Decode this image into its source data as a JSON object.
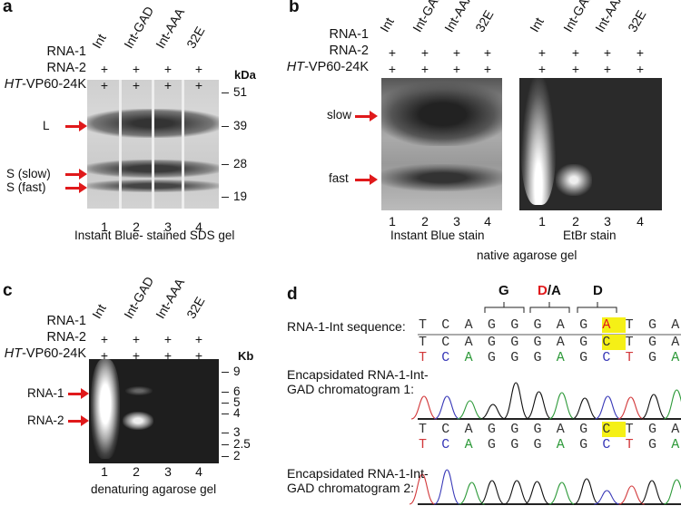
{
  "panel_a": {
    "label": "a",
    "rows": [
      "RNA-1",
      "RNA-2",
      "HT-VP60-24K"
    ],
    "row_italic_prefix": "HT",
    "lanes": [
      "Int",
      "Int-GAD",
      "Int-AAA",
      "32E"
    ],
    "plus": "+",
    "unit": "kDa",
    "ticks": [
      "51",
      "39",
      "28",
      "19"
    ],
    "arrows": [
      "L",
      "S (slow)",
      "S (fast)"
    ],
    "lane_numbers": [
      "1",
      "2",
      "3",
      "4"
    ],
    "caption": "Instant Blue- stained SDS gel"
  },
  "panel_b": {
    "label": "b",
    "rows": [
      "RNA-1",
      "RNA-2",
      "HT-VP60-24K"
    ],
    "lanes": [
      "Int",
      "Int-GAD",
      "Int-AAA",
      "32E"
    ],
    "plus": "+",
    "arrows": [
      "slow",
      "fast"
    ],
    "lane_numbers": [
      "1",
      "2",
      "3",
      "4"
    ],
    "caption_left": "Instant Blue stain",
    "caption_right": "EtBr stain",
    "caption": "native agarose gel"
  },
  "panel_c": {
    "label": "c",
    "rows": [
      "RNA-1",
      "RNA-2",
      "HT-VP60-24K"
    ],
    "lanes": [
      "Int",
      "Int-GAD",
      "Int-AAA",
      "32E"
    ],
    "plus": "+",
    "unit": "Kb",
    "ticks": [
      "9",
      "6",
      "5",
      "4",
      "3",
      "2.5",
      "2"
    ],
    "arrows": [
      "RNA-1",
      "RNA-2"
    ],
    "lane_numbers": [
      "1",
      "2",
      "3",
      "4"
    ],
    "caption": "denaturing agarose gel"
  },
  "panel_d": {
    "label": "d",
    "codons": [
      "G",
      "D",
      "/A",
      "D"
    ],
    "seq_label": "RNA-1-Int sequence:",
    "seq_ref": "TCAGGGAGATGATTGTG",
    "seq_read": "TCAGGGAGCTGATTGTG",
    "chrom1_label_1": "Encapsidated RNA-1-Int-",
    "chrom1_label_2": "GAD chromatogram 1:",
    "chrom2_label_1": "Encapsidated RNA-1-Int-",
    "chrom2_label_2": "GAD chromatogram 2:",
    "highlight_index": 8,
    "colors": {
      "T": "#d2383a",
      "C": "#3a3ab8",
      "A": "#2e9a3a",
      "G": "#333333",
      "mut": "#e0191b",
      "highlight": "#f5f016"
    }
  }
}
